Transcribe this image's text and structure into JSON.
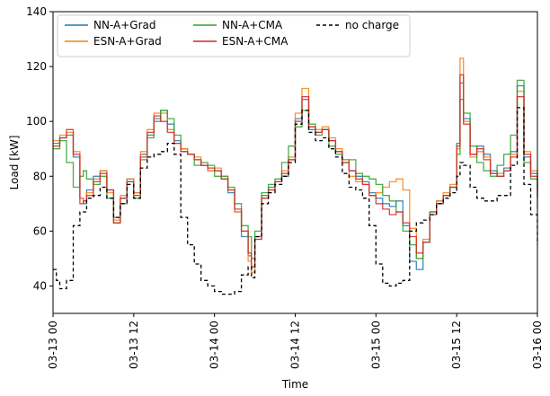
{
  "chart_data": {
    "type": "line",
    "title": "",
    "xlabel": "Time",
    "ylabel": "Load [kW]",
    "ylim": [
      30,
      140
    ],
    "xlim_hours": [
      0,
      72
    ],
    "x_unit": "hours since 03-13 00",
    "grid": false,
    "legend_position": "top-left",
    "y_ticks": [
      40,
      60,
      80,
      100,
      120,
      140
    ],
    "x_ticks": [
      {
        "hour": 0,
        "label": "03-13 00"
      },
      {
        "hour": 12,
        "label": "03-13 12"
      },
      {
        "hour": 24,
        "label": "03-14 00"
      },
      {
        "hour": 36,
        "label": "03-14 12"
      },
      {
        "hour": 48,
        "label": "03-15 00"
      },
      {
        "hour": 60,
        "label": "03-15 12"
      },
      {
        "hour": 72,
        "label": "03-16 00"
      }
    ],
    "series": [
      {
        "name": "NN-A+Grad",
        "color": "#1f77b4",
        "dash": "",
        "x": [
          0,
          1,
          2,
          3,
          4,
          4.5,
          5,
          6,
          7,
          8,
          9,
          10,
          11,
          12,
          13,
          14,
          15,
          16,
          17,
          18,
          19,
          20,
          21,
          22,
          23,
          24,
          25,
          26,
          27,
          28,
          29,
          29.5,
          30,
          31,
          32,
          33,
          34,
          35,
          36,
          37,
          38,
          39,
          40,
          41,
          42,
          43,
          44,
          45,
          46,
          47,
          48,
          49,
          50,
          51,
          52,
          53,
          54,
          55,
          56,
          57,
          58,
          59,
          60,
          60.5,
          61,
          62,
          63,
          64,
          65,
          66,
          67,
          68,
          69,
          70,
          71,
          72
        ],
        "y": [
          92,
          94,
          95,
          87,
          72,
          70,
          75,
          80,
          82,
          75,
          65,
          72,
          79,
          74,
          88,
          95,
          101,
          104,
          99,
          93,
          90,
          88,
          86,
          84,
          82,
          82,
          79,
          74,
          67,
          58,
          51,
          47,
          58,
          73,
          76,
          78,
          80,
          86,
          101,
          108,
          97,
          96,
          97,
          93,
          89,
          86,
          82,
          80,
          78,
          74,
          72,
          70,
          69,
          71,
          62,
          49,
          46,
          56,
          67,
          71,
          73,
          76,
          92,
          114,
          101,
          88,
          91,
          88,
          82,
          80,
          83,
          89,
          113,
          87,
          81,
          75
        ]
      },
      {
        "name": "ESN-A+Grad",
        "color": "#ff7f0e",
        "dash": "",
        "x": [
          0,
          1,
          2,
          3,
          4,
          4.5,
          5,
          6,
          7,
          8,
          9,
          10,
          11,
          12,
          13,
          14,
          15,
          16,
          17,
          18,
          19,
          20,
          21,
          22,
          23,
          24,
          25,
          26,
          27,
          28,
          29,
          29.5,
          30,
          31,
          32,
          33,
          34,
          35,
          36,
          37,
          38,
          39,
          40,
          41,
          42,
          43,
          44,
          45,
          46,
          47,
          48,
          49,
          50,
          51,
          52,
          53,
          54,
          55,
          56,
          57,
          58,
          59,
          60,
          60.5,
          61,
          62,
          63,
          64,
          65,
          66,
          67,
          68,
          69,
          70,
          71,
          72
        ],
        "y": [
          93,
          95,
          96,
          89,
          72,
          71,
          74,
          79,
          82,
          74,
          64,
          73,
          79,
          74,
          89,
          97,
          103,
          103,
          97,
          92,
          90,
          88,
          87,
          84,
          82,
          83,
          80,
          75,
          67,
          60,
          49,
          45,
          57,
          72,
          75,
          78,
          82,
          87,
          103,
          112,
          98,
          97,
          98,
          94,
          90,
          86,
          80,
          78,
          77,
          73,
          74,
          76,
          78,
          79,
          75,
          61,
          50,
          57,
          67,
          71,
          74,
          77,
          90,
          123,
          100,
          87,
          89,
          87,
          81,
          81,
          82,
          88,
          111,
          89,
          82,
          73
        ]
      },
      {
        "name": "NN-A+CMA",
        "color": "#2ca02c",
        "dash": "",
        "x": [
          0,
          1,
          2,
          3,
          4,
          4.5,
          5,
          6,
          7,
          8,
          9,
          10,
          11,
          12,
          13,
          14,
          15,
          16,
          17,
          18,
          19,
          20,
          21,
          22,
          23,
          24,
          25,
          26,
          27,
          28,
          29,
          29.5,
          30,
          31,
          32,
          33,
          34,
          35,
          36,
          37,
          38,
          39,
          40,
          41,
          42,
          43,
          44,
          45,
          46,
          47,
          48,
          49,
          50,
          51,
          52,
          53,
          54,
          55,
          56,
          57,
          58,
          59,
          60,
          60.5,
          61,
          62,
          63,
          64,
          65,
          66,
          67,
          68,
          69,
          70,
          71,
          72
        ],
        "y": [
          90,
          93,
          85,
          76,
          80,
          82,
          79,
          77,
          80,
          72,
          63,
          70,
          78,
          72,
          86,
          94,
          100,
          104,
          101,
          95,
          89,
          88,
          84,
          85,
          84,
          80,
          80,
          76,
          70,
          62,
          58,
          50,
          60,
          74,
          77,
          79,
          85,
          91,
          98,
          104,
          99,
          95,
          97,
          91,
          88,
          85,
          86,
          81,
          80,
          79,
          77,
          73,
          71,
          67,
          60,
          55,
          50,
          56,
          67,
          70,
          73,
          76,
          88,
          108,
          103,
          91,
          85,
          82,
          80,
          84,
          88,
          95,
          115,
          85,
          79,
          68
        ]
      },
      {
        "name": "ESN-A+CMA",
        "color": "#d62728",
        "dash": "",
        "x": [
          0,
          1,
          2,
          3,
          4,
          4.5,
          5,
          6,
          7,
          8,
          9,
          10,
          11,
          12,
          13,
          14,
          15,
          16,
          17,
          18,
          19,
          20,
          21,
          22,
          23,
          24,
          25,
          26,
          27,
          28,
          29,
          29.5,
          30,
          31,
          32,
          33,
          34,
          35,
          36,
          37,
          38,
          39,
          40,
          41,
          42,
          43,
          44,
          45,
          46,
          47,
          48,
          49,
          50,
          51,
          52,
          53,
          54,
          55,
          56,
          57,
          58,
          59,
          60,
          60.5,
          61,
          62,
          63,
          64,
          65,
          66,
          67,
          68,
          69,
          70,
          71,
          72
        ],
        "y": [
          91,
          94,
          97,
          88,
          70,
          71,
          73,
          78,
          81,
          75,
          63,
          72,
          78,
          73,
          87,
          96,
          102,
          100,
          96,
          92,
          89,
          88,
          86,
          84,
          83,
          82,
          79,
          75,
          68,
          60,
          52,
          47,
          57,
          72,
          75,
          78,
          81,
          86,
          100,
          109,
          98,
          96,
          97,
          93,
          89,
          85,
          82,
          79,
          77,
          73,
          70,
          68,
          66,
          67,
          63,
          58,
          52,
          56,
          66,
          70,
          73,
          76,
          91,
          117,
          99,
          88,
          90,
          86,
          81,
          80,
          82,
          87,
          109,
          88,
          80,
          72
        ]
      },
      {
        "name": "no charge",
        "color": "#000000",
        "dash": "4,3",
        "x": [
          0,
          0.5,
          1,
          2,
          3,
          4,
          5,
          6,
          7,
          8,
          9,
          10,
          11,
          12,
          13,
          14,
          15,
          16,
          17,
          18,
          19,
          20,
          21,
          22,
          23,
          24,
          25,
          26,
          27,
          28,
          29,
          29.5,
          30,
          31,
          32,
          33,
          34,
          35,
          36,
          37,
          38,
          39,
          40,
          41,
          42,
          43,
          44,
          45,
          46,
          47,
          48,
          49,
          50,
          51,
          52,
          53,
          54,
          55,
          56,
          57,
          58,
          59,
          60,
          60.5,
          61,
          62,
          63,
          64,
          65,
          66,
          67,
          68,
          69,
          70,
          71,
          72
        ],
        "y": [
          46,
          42,
          39,
          42,
          62,
          67,
          72,
          73,
          76,
          72,
          65,
          70,
          77,
          72,
          83,
          87,
          88,
          89,
          92,
          88,
          65,
          55,
          48,
          42,
          40,
          38,
          37,
          37,
          38,
          44,
          47,
          43,
          58,
          70,
          74,
          77,
          80,
          85,
          99,
          104,
          96,
          93,
          94,
          90,
          87,
          81,
          76,
          75,
          72,
          62,
          48,
          41,
          40,
          41,
          42,
          60,
          63,
          64,
          66,
          70,
          72,
          74,
          80,
          85,
          84,
          76,
          72,
          71,
          71,
          73,
          73,
          84,
          105,
          77,
          66,
          55
        ]
      }
    ]
  }
}
